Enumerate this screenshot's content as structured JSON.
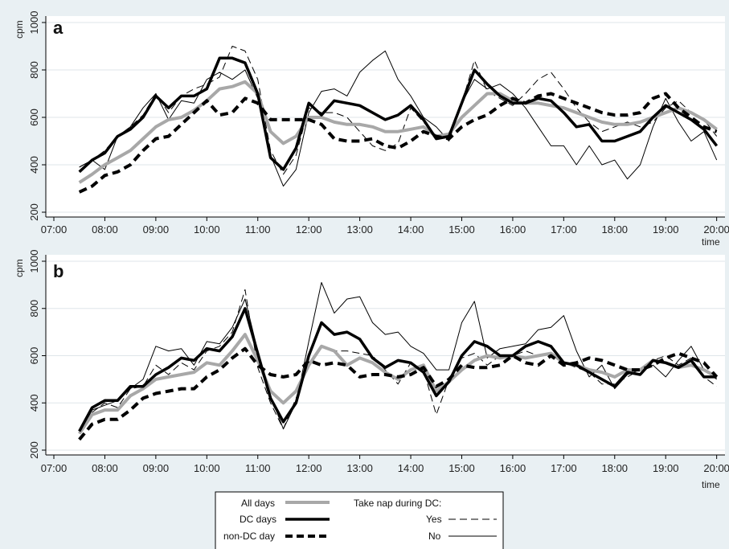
{
  "chart_data": [
    {
      "type": "line",
      "panel": "a",
      "ylabel": "cpm",
      "xlabel": "time",
      "ylim": [
        200,
        1000
      ],
      "yticks": [
        "200",
        "400",
        "600",
        "800",
        "1000"
      ],
      "xlim": [
        7.0,
        20.1
      ],
      "xticks": [
        "07:00",
        "08:00",
        "09:00",
        "10:00",
        "11:00",
        "12:00",
        "13:00",
        "14:00",
        "15:00",
        "16:00",
        "17:00",
        "18:00",
        "19:00",
        "20:00"
      ],
      "x": [
        7.5,
        7.75,
        8.0,
        8.25,
        8.5,
        8.75,
        9.0,
        9.25,
        9.5,
        9.75,
        10.0,
        10.25,
        10.5,
        10.75,
        11.0,
        11.25,
        11.5,
        11.75,
        12.0,
        12.25,
        12.5,
        12.75,
        13.0,
        13.25,
        13.5,
        13.75,
        14.0,
        14.25,
        14.5,
        14.75,
        15.0,
        15.25,
        15.5,
        15.75,
        16.0,
        16.25,
        16.5,
        16.75,
        17.0,
        17.25,
        17.5,
        17.75,
        18.0,
        18.25,
        18.5,
        18.75,
        19.0,
        19.25,
        19.5,
        19.75,
        20.0
      ],
      "series": [
        {
          "name": "All days",
          "color": "#a8a8a8",
          "values": [
            325,
            360,
            400,
            430,
            460,
            510,
            560,
            590,
            600,
            630,
            670,
            720,
            730,
            750,
            700,
            540,
            490,
            520,
            600,
            600,
            580,
            570,
            570,
            560,
            540,
            540,
            550,
            560,
            520,
            530,
            600,
            650,
            700,
            700,
            670,
            660,
            660,
            650,
            640,
            620,
            600,
            580,
            570,
            570,
            580,
            600,
            620,
            640,
            620,
            590,
            550
          ]
        },
        {
          "name": "DC days",
          "color": "#000000",
          "values": [
            370,
            420,
            450,
            520,
            550,
            600,
            690,
            640,
            690,
            690,
            720,
            850,
            850,
            830,
            700,
            430,
            380,
            470,
            660,
            610,
            670,
            660,
            650,
            620,
            590,
            610,
            650,
            590,
            510,
            520,
            660,
            800,
            740,
            690,
            660,
            660,
            680,
            670,
            620,
            560,
            570,
            500,
            500,
            520,
            540,
            600,
            650,
            620,
            590,
            550,
            480
          ]
        },
        {
          "name": "non-DC day",
          "color": "#000000",
          "values": [
            285,
            310,
            355,
            370,
            400,
            460,
            510,
            520,
            570,
            620,
            670,
            610,
            620,
            680,
            660,
            590,
            590,
            590,
            590,
            570,
            510,
            500,
            500,
            510,
            480,
            470,
            500,
            540,
            520,
            510,
            560,
            590,
            610,
            650,
            680,
            660,
            690,
            700,
            680,
            660,
            640,
            620,
            610,
            610,
            620,
            680,
            700,
            640,
            600,
            560,
            540
          ]
        },
        {
          "name": "Yes",
          "color": "#000000",
          "values": [
            390,
            420,
            460,
            520,
            560,
            610,
            700,
            620,
            690,
            720,
            740,
            770,
            900,
            880,
            760,
            460,
            360,
            440,
            640,
            620,
            620,
            600,
            540,
            480,
            460,
            490,
            640,
            580,
            520,
            520,
            660,
            840,
            710,
            680,
            650,
            700,
            760,
            790,
            720,
            640,
            580,
            540,
            560,
            580,
            560,
            580,
            640,
            670,
            620,
            590,
            520
          ]
        },
        {
          "name": "No",
          "color": "#000000",
          "values": [
            390,
            420,
            380,
            520,
            560,
            640,
            700,
            590,
            670,
            660,
            760,
            790,
            760,
            800,
            680,
            440,
            310,
            380,
            620,
            710,
            720,
            690,
            790,
            840,
            880,
            760,
            690,
            600,
            560,
            500,
            660,
            760,
            720,
            740,
            700,
            640,
            560,
            480,
            480,
            400,
            480,
            400,
            420,
            340,
            400,
            560,
            680,
            580,
            500,
            540,
            420
          ]
        }
      ]
    },
    {
      "type": "line",
      "panel": "b",
      "ylabel": "cpm",
      "xlabel": "time",
      "ylim": [
        200,
        1000
      ],
      "yticks": [
        "200",
        "400",
        "600",
        "800",
        "1000"
      ],
      "xlim": [
        7.0,
        20.1
      ],
      "xticks": [
        "07:00",
        "08:00",
        "09:00",
        "10:00",
        "11:00",
        "12:00",
        "13:00",
        "14:00",
        "15:00",
        "16:00",
        "17:00",
        "18:00",
        "19:00",
        "20:00"
      ],
      "x": [
        7.5,
        7.75,
        8.0,
        8.25,
        8.5,
        8.75,
        9.0,
        9.25,
        9.5,
        9.75,
        10.0,
        10.25,
        10.5,
        10.75,
        11.0,
        11.25,
        11.5,
        11.75,
        12.0,
        12.25,
        12.5,
        12.75,
        13.0,
        13.25,
        13.5,
        13.75,
        14.0,
        14.25,
        14.5,
        14.75,
        15.0,
        15.25,
        15.5,
        15.75,
        16.0,
        16.25,
        16.5,
        16.75,
        17.0,
        17.25,
        17.5,
        17.75,
        18.0,
        18.25,
        18.5,
        18.75,
        19.0,
        19.25,
        19.5,
        19.75,
        20.0
      ],
      "series": [
        {
          "name": "All days",
          "color": "#a8a8a8",
          "values": [
            270,
            350,
            370,
            370,
            430,
            460,
            500,
            510,
            520,
            530,
            570,
            560,
            620,
            690,
            580,
            450,
            400,
            450,
            560,
            640,
            620,
            560,
            590,
            570,
            530,
            500,
            540,
            560,
            450,
            490,
            540,
            580,
            600,
            590,
            600,
            590,
            600,
            610,
            570,
            560,
            540,
            530,
            510,
            540,
            540,
            580,
            570,
            550,
            560,
            540,
            510
          ]
        },
        {
          "name": "DC days",
          "color": "#000000",
          "values": [
            280,
            380,
            410,
            410,
            470,
            470,
            520,
            550,
            590,
            580,
            630,
            620,
            680,
            800,
            610,
            420,
            320,
            400,
            600,
            740,
            690,
            700,
            670,
            590,
            550,
            580,
            570,
            530,
            430,
            490,
            600,
            660,
            640,
            600,
            600,
            640,
            660,
            640,
            570,
            560,
            530,
            500,
            470,
            530,
            520,
            580,
            570,
            550,
            580,
            510,
            510
          ]
        },
        {
          "name": "non-DC day",
          "color": "#000000",
          "values": [
            245,
            310,
            330,
            330,
            370,
            420,
            440,
            450,
            460,
            460,
            510,
            540,
            590,
            630,
            560,
            520,
            510,
            520,
            580,
            560,
            570,
            560,
            510,
            520,
            520,
            510,
            520,
            550,
            470,
            500,
            560,
            550,
            550,
            560,
            600,
            570,
            560,
            600,
            560,
            570,
            590,
            580,
            560,
            540,
            540,
            560,
            590,
            610,
            590,
            570,
            510
          ]
        },
        {
          "name": "Yes",
          "color": "#000000",
          "values": [
            280,
            360,
            400,
            380,
            460,
            470,
            560,
            520,
            570,
            540,
            620,
            640,
            700,
            880,
            550,
            400,
            290,
            420,
            560,
            640,
            620,
            620,
            610,
            600,
            540,
            480,
            570,
            540,
            350,
            500,
            590,
            610,
            560,
            600,
            600,
            620,
            600,
            600,
            570,
            550,
            530,
            480,
            480,
            510,
            540,
            580,
            600,
            560,
            590,
            510,
            470
          ]
        },
        {
          "name": "No",
          "color": "#000000",
          "values": [
            270,
            370,
            390,
            410,
            460,
            500,
            640,
            620,
            630,
            560,
            660,
            650,
            720,
            840,
            620,
            430,
            290,
            400,
            660,
            910,
            780,
            840,
            850,
            740,
            690,
            700,
            640,
            610,
            540,
            540,
            740,
            830,
            590,
            630,
            640,
            650,
            710,
            720,
            770,
            620,
            510,
            560,
            460,
            520,
            540,
            560,
            510,
            580,
            640,
            540,
            500
          ]
        }
      ]
    }
  ],
  "legend": {
    "all_days": "All days",
    "dc_days": "DC days",
    "non_dc_day": "non-DC day",
    "take_nap": "Take nap during DC:",
    "yes": "Yes",
    "no": "No"
  }
}
